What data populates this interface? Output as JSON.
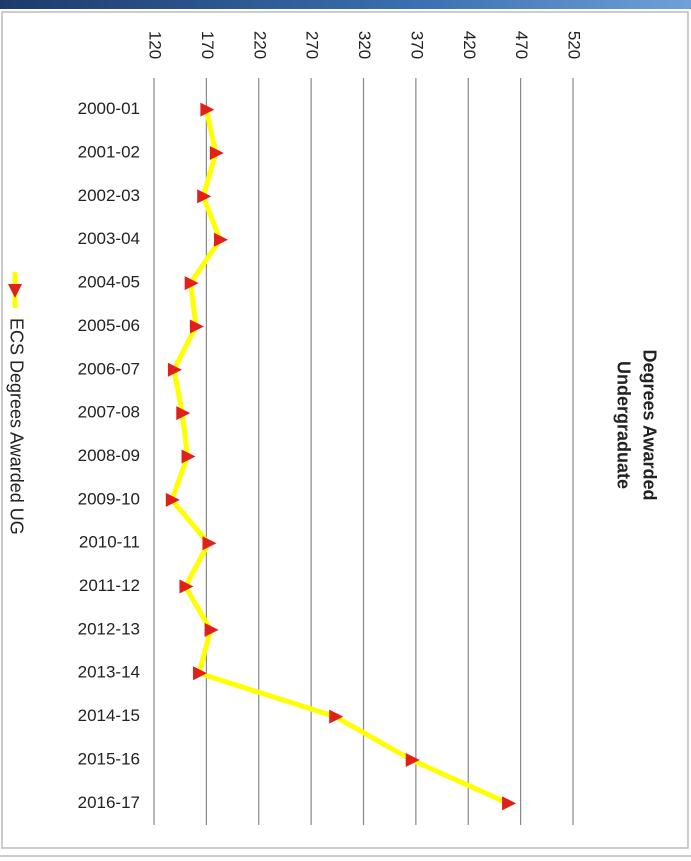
{
  "chart_data": {
    "type": "line",
    "title": [
      "Degrees Awarded",
      "Undergraduate"
    ],
    "categories": [
      "2000-01",
      "2001-02",
      "2002-03",
      "2003-04",
      "2004-05",
      "2005-06",
      "2006-07",
      "2007-08",
      "2008-09",
      "2009-10",
      "2010-11",
      "2011-12",
      "2012-13",
      "2013-14",
      "2014-15",
      "2015-16",
      "2016-17"
    ],
    "series": [
      {
        "name": "ECS  Degrees Awarded UG",
        "color": "#ffff00",
        "marker_color": "#e0201a",
        "values": [
          170,
          179,
          167,
          183,
          155,
          160,
          139,
          147,
          152,
          137,
          172,
          150,
          174,
          163,
          293,
          366,
          458
        ]
      }
    ],
    "ylim": [
      120,
      520
    ],
    "yticks": [
      120,
      170,
      220,
      270,
      320,
      370,
      420,
      470,
      520
    ],
    "grid": true
  }
}
